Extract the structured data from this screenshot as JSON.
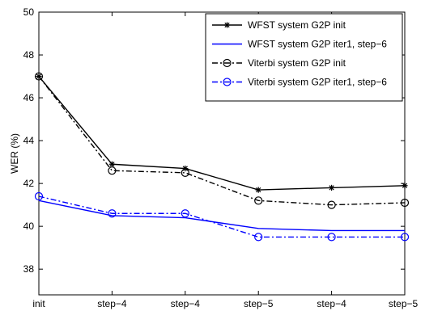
{
  "chart_data": {
    "type": "line",
    "categories": [
      "init",
      "step−4",
      "step−4",
      "step−5",
      "step−4",
      "step−5"
    ],
    "ylabel": "WER (%)",
    "xlabel": "",
    "ylim": [
      36.8,
      50
    ],
    "yticks": [
      38,
      40,
      42,
      44,
      46,
      48,
      50
    ],
    "grid": false,
    "legend_position": "top-right",
    "series": [
      {
        "name": "WFST system G2P init",
        "values": [
          47.0,
          42.9,
          42.7,
          41.7,
          41.8,
          41.9
        ],
        "color": "#000000",
        "line": "solid",
        "marker": "star"
      },
      {
        "name": "WFST system G2P iter1, step−6",
        "values": [
          41.2,
          40.5,
          40.4,
          39.9,
          39.8,
          39.8
        ],
        "color": "#0000ff",
        "line": "solid",
        "marker": "none"
      },
      {
        "name": "Viterbi system G2P init",
        "values": [
          47.0,
          42.6,
          42.5,
          41.2,
          41.0,
          41.1
        ],
        "color": "#000000",
        "line": "dashdot",
        "marker": "circle"
      },
      {
        "name": "Viterbi system G2P iter1, step−6",
        "values": [
          41.4,
          40.6,
          40.6,
          39.5,
          39.5,
          39.5
        ],
        "color": "#0000ff",
        "line": "dashdot",
        "marker": "circle"
      }
    ]
  }
}
